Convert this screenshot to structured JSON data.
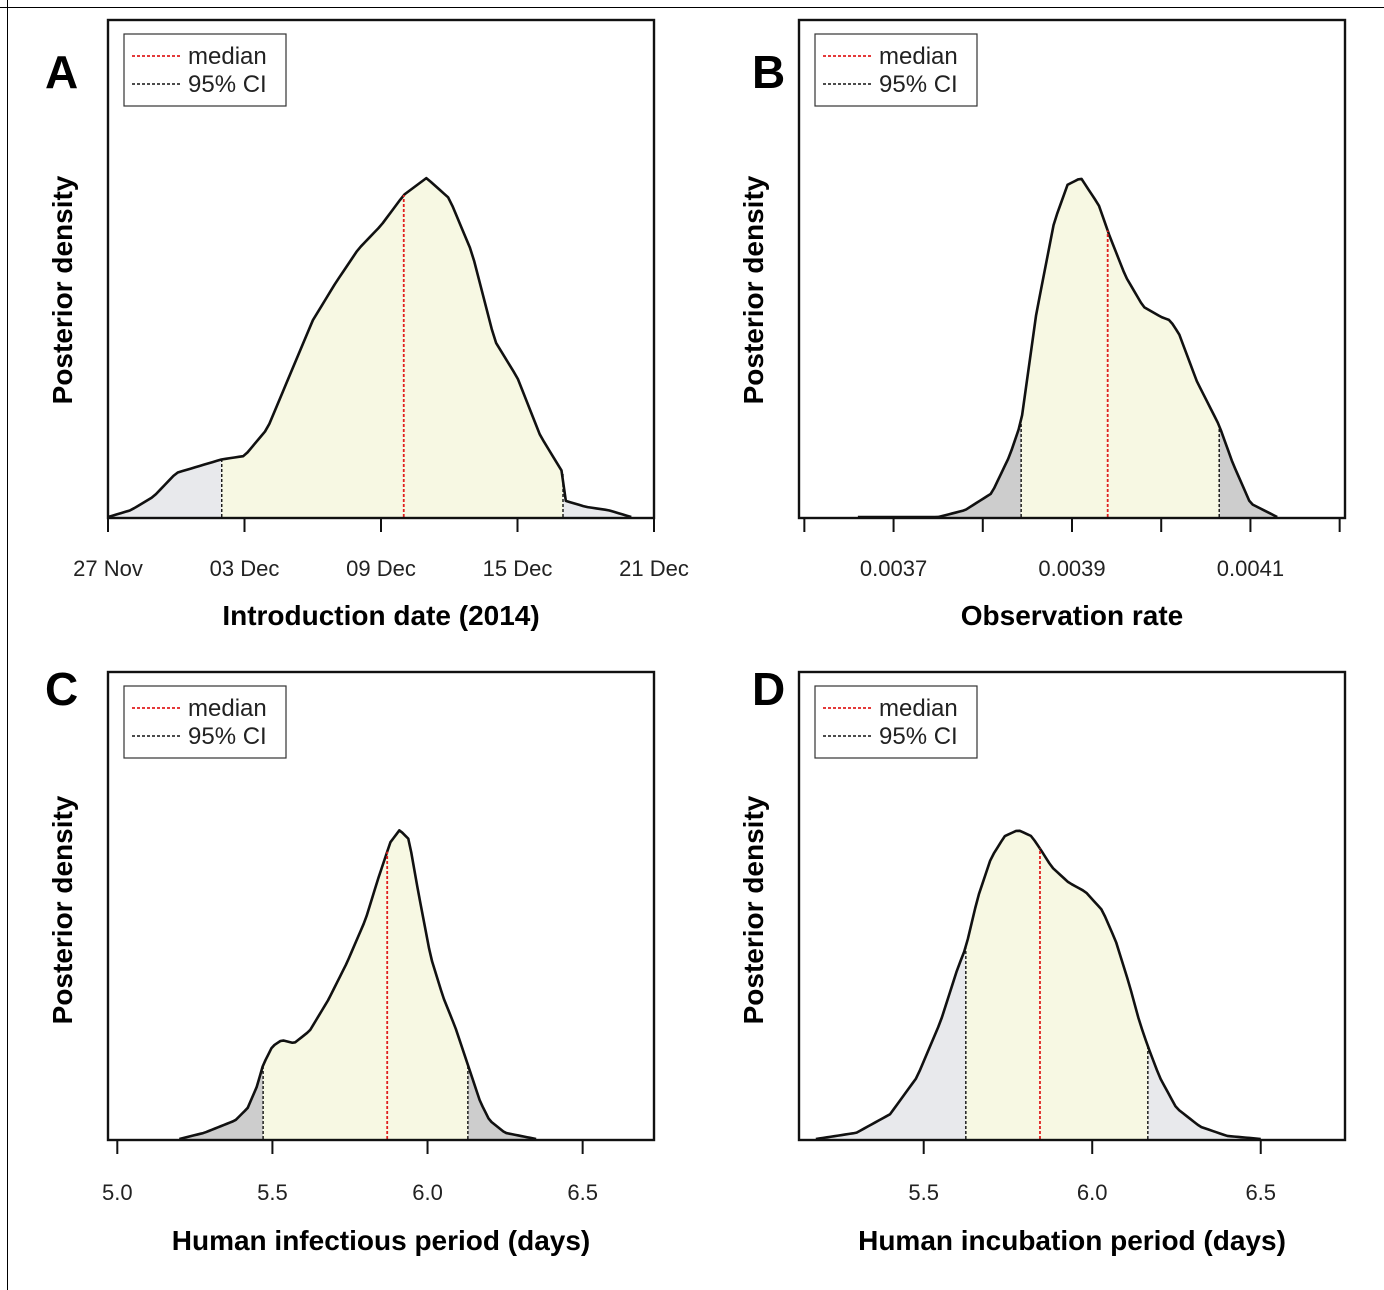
{
  "chart_data": [
    {
      "type": "area",
      "panel": "A",
      "xlabel": "Introduction date (2014)",
      "ylabel": "Posterior density",
      "xlim": [
        "2014-11-27",
        "2014-12-21"
      ],
      "xticks": [
        {
          "value": "2014-11-27",
          "label": "27 Nov"
        },
        {
          "value": "2014-12-03",
          "label": "03 Dec"
        },
        {
          "value": "2014-12-09",
          "label": "09 Dec"
        },
        {
          "value": "2014-12-15",
          "label": "15 Dec"
        },
        {
          "value": "2014-12-21",
          "label": "21 Dec"
        }
      ],
      "x": [
        "2014-11-27",
        "2014-11-28",
        "2014-11-29",
        "2014-11-30",
        "2014-12-01",
        "2014-12-02",
        "2014-12-03",
        "2014-12-03",
        "2014-12-04",
        "2014-12-05",
        "2014-12-06",
        "2014-12-07",
        "2014-12-08",
        "2014-12-09",
        "2014-12-10",
        "2014-12-11",
        "2014-12-12",
        "2014-12-13",
        "2014-12-14",
        "2014-12-15",
        "2014-12-16",
        "2014-12-17",
        "2014-12-17",
        "2014-12-18",
        "2014-12-19",
        "2014-12-20"
      ],
      "y": [
        0.0,
        0.02,
        0.06,
        0.13,
        0.15,
        0.17,
        0.18,
        0.18,
        0.26,
        0.42,
        0.58,
        0.69,
        0.79,
        0.86,
        0.95,
        1.0,
        0.94,
        0.78,
        0.52,
        0.41,
        0.24,
        0.13,
        0.05,
        0.03,
        0.02,
        0.0
      ],
      "median": "2014-12-10",
      "ci": [
        "2014-12-02",
        "2014-12-17"
      ],
      "legend": {
        "position": "top-left",
        "entries": [
          "median",
          "95% CI"
        ]
      }
    },
    {
      "type": "area",
      "panel": "B",
      "xlabel": "Observation rate",
      "ylabel": "Posterior density",
      "xlim": [
        0.003594,
        0.004206
      ],
      "xticks": [
        {
          "value": 0.0036,
          "label": ""
        },
        {
          "value": 0.0037,
          "label": "0.0037"
        },
        {
          "value": 0.0038,
          "label": ""
        },
        {
          "value": 0.0039,
          "label": "0.0039"
        },
        {
          "value": 0.004,
          "label": ""
        },
        {
          "value": 0.0041,
          "label": "0.0041"
        },
        {
          "value": 0.0042,
          "label": ""
        }
      ],
      "x": [
        0.00366,
        0.00375,
        0.00378,
        0.00381,
        0.00383,
        0.003843,
        0.00386,
        0.00388,
        0.003895,
        0.00391,
        0.00393,
        0.003942,
        0.00396,
        0.00398,
        0.004,
        0.00401,
        0.00402,
        0.00404,
        0.004065,
        0.00408,
        0.0041,
        0.00413
      ],
      "y": [
        0.0,
        0.0,
        0.02,
        0.07,
        0.18,
        0.28,
        0.6,
        0.87,
        0.98,
        1.0,
        0.92,
        0.83,
        0.71,
        0.62,
        0.59,
        0.58,
        0.54,
        0.4,
        0.27,
        0.16,
        0.04,
        0.0
      ],
      "median": 0.00394,
      "ci": [
        0.003843,
        0.004065
      ],
      "legend": {
        "position": "top-left",
        "entries": [
          "median",
          "95% CI"
        ]
      }
    },
    {
      "type": "area",
      "panel": "C",
      "xlabel": "Human infectious period (days)",
      "ylabel": "Posterior density",
      "xlim": [
        4.97,
        6.73
      ],
      "xticks": [
        {
          "value": 5.0,
          "label": "5.0"
        },
        {
          "value": 5.5,
          "label": "5.5"
        },
        {
          "value": 6.0,
          "label": "6.0"
        },
        {
          "value": 6.5,
          "label": "6.5"
        }
      ],
      "x": [
        5.2,
        5.28,
        5.33,
        5.38,
        5.42,
        5.45,
        5.47,
        5.5,
        5.53,
        5.57,
        5.62,
        5.68,
        5.74,
        5.8,
        5.84,
        5.88,
        5.91,
        5.94,
        5.97,
        6.01,
        6.05,
        6.09,
        6.13,
        6.17,
        6.2,
        6.25,
        6.35
      ],
      "y": [
        0.0,
        0.02,
        0.04,
        0.06,
        0.1,
        0.17,
        0.24,
        0.3,
        0.32,
        0.31,
        0.35,
        0.45,
        0.57,
        0.71,
        0.84,
        0.96,
        1.0,
        0.97,
        0.8,
        0.59,
        0.46,
        0.36,
        0.24,
        0.12,
        0.06,
        0.02,
        0.0
      ],
      "median": 5.87,
      "ci": [
        5.47,
        6.13
      ],
      "legend": {
        "position": "top-left",
        "entries": [
          "median",
          "95% CI"
        ]
      }
    },
    {
      "type": "area",
      "panel": "D",
      "xlabel": "Human incubation period (days)",
      "ylabel": "Posterior density",
      "xlim": [
        5.13,
        6.75
      ],
      "xticks": [
        {
          "value": 5.5,
          "label": "5.5"
        },
        {
          "value": 6.0,
          "label": "6.0"
        },
        {
          "value": 6.5,
          "label": "6.5"
        }
      ],
      "x": [
        5.18,
        5.3,
        5.4,
        5.48,
        5.55,
        5.6,
        5.625,
        5.66,
        5.7,
        5.74,
        5.78,
        5.82,
        5.845,
        5.88,
        5.93,
        5.98,
        6.03,
        6.07,
        6.11,
        6.14,
        6.165,
        6.2,
        6.25,
        6.32,
        6.4,
        6.5
      ],
      "y": [
        0.0,
        0.02,
        0.08,
        0.2,
        0.38,
        0.55,
        0.62,
        0.78,
        0.91,
        0.98,
        1.0,
        0.98,
        0.94,
        0.88,
        0.83,
        0.8,
        0.74,
        0.64,
        0.5,
        0.38,
        0.3,
        0.2,
        0.1,
        0.04,
        0.01,
        0.0
      ],
      "median": 5.845,
      "ci": [
        5.625,
        6.165
      ],
      "legend": {
        "position": "top-left",
        "entries": [
          "median",
          "95% CI"
        ]
      }
    }
  ],
  "colors": {
    "ci_fill": "#f7f8e3",
    "tail_fill_light": "#e8e9ec",
    "tail_fill_dark": "#cdcdcd",
    "median_line": "#e01f1f",
    "ci_line": "#111111",
    "curve": "#111111"
  }
}
